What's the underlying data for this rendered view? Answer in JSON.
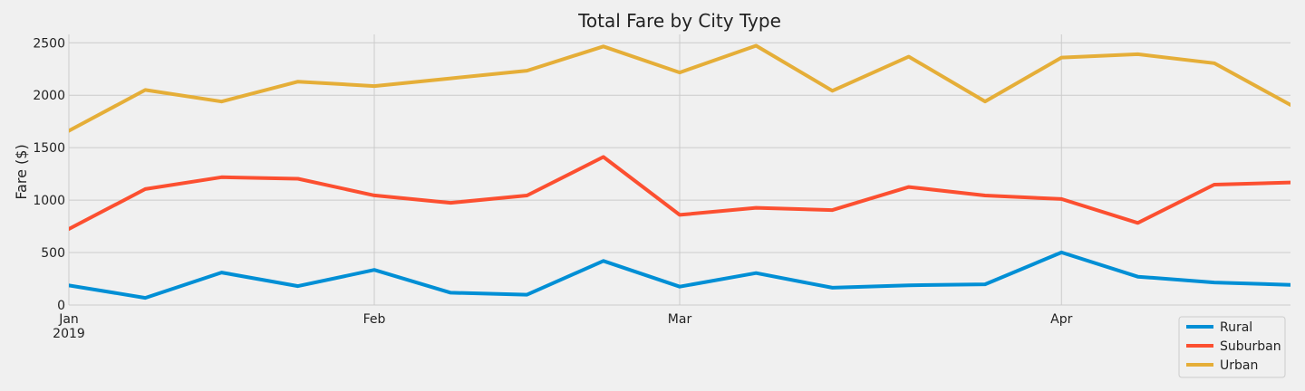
{
  "chart_data": {
    "type": "line",
    "title": "Total Fare by City Type",
    "ylabel": "Fare ($)",
    "xlabel": "",
    "ylim": [
      0,
      2580
    ],
    "yticks": [
      0,
      500,
      1000,
      1500,
      2000,
      2500
    ],
    "x": [
      "2019-01-06",
      "2019-01-13",
      "2019-01-20",
      "2019-01-27",
      "2019-02-03",
      "2019-02-10",
      "2019-02-17",
      "2019-02-24",
      "2019-03-03",
      "2019-03-10",
      "2019-03-17",
      "2019-03-24",
      "2019-03-31",
      "2019-04-07",
      "2019-04-14",
      "2019-04-21",
      "2019-04-28"
    ],
    "xlim": [
      "2019-01-06",
      "2019-04-28"
    ],
    "xticks": [
      {
        "date": "2019-01-06",
        "label": "Jan",
        "sublabel": "2019"
      },
      {
        "date": "2019-02-03",
        "label": "Feb",
        "sublabel": ""
      },
      {
        "date": "2019-03-03",
        "label": "Mar",
        "sublabel": ""
      },
      {
        "date": "2019-04-07",
        "label": "Apr",
        "sublabel": ""
      }
    ],
    "grid": true,
    "legend_position": "bottom-right",
    "series": [
      {
        "name": "Rural",
        "color": "#008fd5",
        "values": [
          187,
          68,
          310,
          180,
          335,
          117,
          98,
          420,
          175,
          305,
          165,
          188,
          198,
          501,
          270,
          215,
          192
        ]
      },
      {
        "name": "Suburban",
        "color": "#fc4f30",
        "values": [
          725,
          1105,
          1218,
          1204,
          1045,
          974,
          1044,
          1412,
          859,
          927,
          905,
          1125,
          1044,
          1010,
          783,
          1148,
          1168
        ]
      },
      {
        "name": "Urban",
        "color": "#e5ae38",
        "values": [
          1661,
          2050,
          1940,
          2130,
          2087,
          2161,
          2234,
          2465,
          2217,
          2472,
          2042,
          2368,
          1941,
          2359,
          2391,
          2306,
          1908
        ]
      }
    ]
  }
}
